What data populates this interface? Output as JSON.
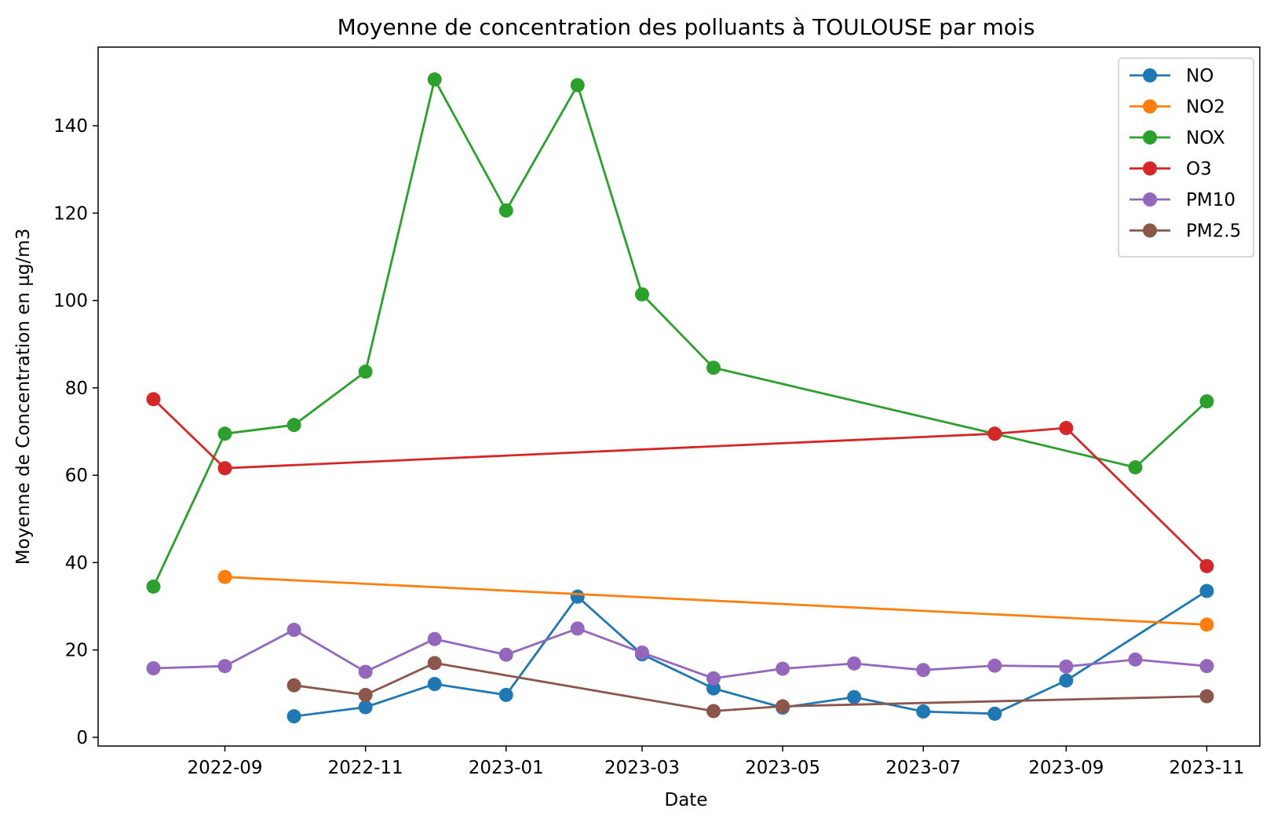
{
  "chart_data": {
    "type": "line",
    "title": "Moyenne de concentration des polluants à TOULOUSE par mois",
    "xlabel": "Date",
    "ylabel": "Moyenne de Concentration en µg/m3",
    "xlim": [
      "2022-07-08",
      "2023-11-24"
    ],
    "ylim": [
      -2,
      158
    ],
    "x_ticks": [
      "2022-09",
      "2022-11",
      "2023-01",
      "2023-03",
      "2023-05",
      "2023-07",
      "2023-09",
      "2023-11"
    ],
    "y_ticks": [
      0,
      20,
      40,
      60,
      80,
      100,
      120,
      140
    ],
    "legend_position": "top-right",
    "grid": false,
    "series": [
      {
        "name": "NO",
        "color": "#1f77b4",
        "points": [
          {
            "x": "2022-10-01",
            "y": 4.8
          },
          {
            "x": "2022-11-01",
            "y": 6.9
          },
          {
            "x": "2022-12-01",
            "y": 12.2
          },
          {
            "x": "2023-01-01",
            "y": 9.7
          },
          {
            "x": "2023-02-01",
            "y": 32.2
          },
          {
            "x": "2023-03-01",
            "y": 19.0
          },
          {
            "x": "2023-04-01",
            "y": 11.2
          },
          {
            "x": "2023-05-01",
            "y": 6.8
          },
          {
            "x": "2023-06-01",
            "y": 9.2
          },
          {
            "x": "2023-07-01",
            "y": 5.9
          },
          {
            "x": "2023-08-01",
            "y": 5.4
          },
          {
            "x": "2023-09-01",
            "y": 13.0
          },
          {
            "x": "2023-11-01",
            "y": 33.5
          }
        ]
      },
      {
        "name": "NO2",
        "color": "#ff7f0e",
        "points": [
          {
            "x": "2022-09-01",
            "y": 36.7
          },
          {
            "x": "2023-11-01",
            "y": 25.8
          }
        ]
      },
      {
        "name": "NOX",
        "color": "#2ca02c",
        "points": [
          {
            "x": "2022-08-01",
            "y": 34.5
          },
          {
            "x": "2022-09-01",
            "y": 69.5
          },
          {
            "x": "2022-10-01",
            "y": 71.5
          },
          {
            "x": "2022-11-01",
            "y": 83.7
          },
          {
            "x": "2022-12-01",
            "y": 150.6
          },
          {
            "x": "2023-01-01",
            "y": 120.6
          },
          {
            "x": "2023-02-01",
            "y": 149.3
          },
          {
            "x": "2023-03-01",
            "y": 101.4
          },
          {
            "x": "2023-04-01",
            "y": 84.6
          },
          {
            "x": "2023-08-01",
            "y": 69.5
          },
          {
            "x": "2023-10-01",
            "y": 61.8
          },
          {
            "x": "2023-11-01",
            "y": 76.9
          }
        ]
      },
      {
        "name": "O3",
        "color": "#d62728",
        "points": [
          {
            "x": "2022-08-01",
            "y": 77.4
          },
          {
            "x": "2022-09-01",
            "y": 61.6
          },
          {
            "x": "2023-08-01",
            "y": 69.5
          },
          {
            "x": "2023-09-01",
            "y": 70.8
          },
          {
            "x": "2023-11-01",
            "y": 39.2
          }
        ]
      },
      {
        "name": "PM10",
        "color": "#9467bd",
        "points": [
          {
            "x": "2022-08-01",
            "y": 15.8
          },
          {
            "x": "2022-09-01",
            "y": 16.3
          },
          {
            "x": "2022-10-01",
            "y": 24.6
          },
          {
            "x": "2022-11-01",
            "y": 15.0
          },
          {
            "x": "2022-12-01",
            "y": 22.5
          },
          {
            "x": "2023-01-01",
            "y": 18.9
          },
          {
            "x": "2023-02-01",
            "y": 24.9
          },
          {
            "x": "2023-03-01",
            "y": 19.4
          },
          {
            "x": "2023-04-01",
            "y": 13.5
          },
          {
            "x": "2023-05-01",
            "y": 15.7
          },
          {
            "x": "2023-06-01",
            "y": 16.9
          },
          {
            "x": "2023-07-01",
            "y": 15.4
          },
          {
            "x": "2023-08-01",
            "y": 16.4
          },
          {
            "x": "2023-09-01",
            "y": 16.2
          },
          {
            "x": "2023-10-01",
            "y": 17.8
          },
          {
            "x": "2023-11-01",
            "y": 16.3
          }
        ]
      },
      {
        "name": "PM2.5",
        "color": "#8c564b",
        "points": [
          {
            "x": "2022-10-01",
            "y": 11.9
          },
          {
            "x": "2022-11-01",
            "y": 9.7
          },
          {
            "x": "2022-12-01",
            "y": 17.0
          },
          {
            "x": "2023-04-01",
            "y": 6.0
          },
          {
            "x": "2023-05-01",
            "y": 7.1
          },
          {
            "x": "2023-11-01",
            "y": 9.4
          }
        ]
      }
    ]
  }
}
